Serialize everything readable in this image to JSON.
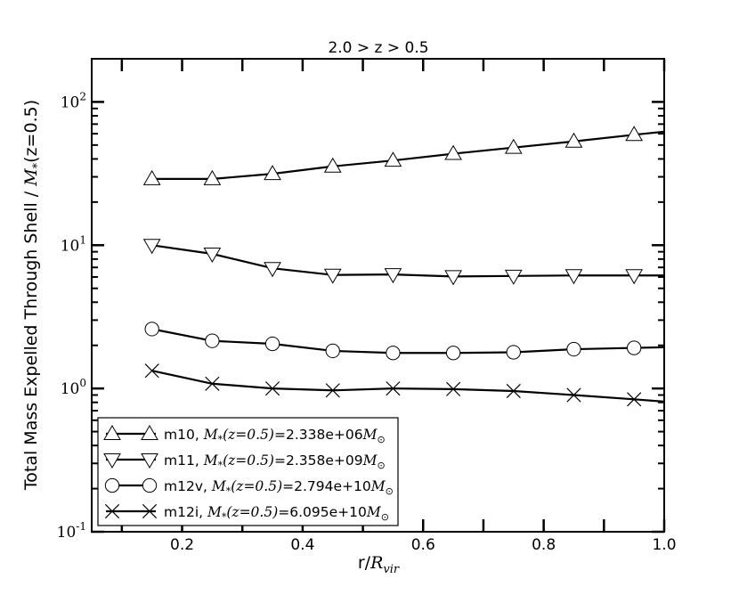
{
  "chart_data": {
    "type": "line",
    "title": "2.0 > z > 0.5",
    "xlabel": "r/R_vir",
    "ylabel": "Total Mass Expelled Through Shell / M_*(z=0.5)",
    "xscale": "linear",
    "yscale": "log",
    "xlim": [
      0.05,
      1.0
    ],
    "ylim": [
      0.1,
      200
    ],
    "xticks": [
      {
        "v": 0.2,
        "label": "0.2"
      },
      {
        "v": 0.4,
        "label": "0.4"
      },
      {
        "v": 0.6,
        "label": "0.6"
      },
      {
        "v": 0.8,
        "label": "0.8"
      },
      {
        "v": 1.0,
        "label": "1.0"
      }
    ],
    "yticks": [
      {
        "v": 0.1,
        "base": "10",
        "exp": "-1"
      },
      {
        "v": 1,
        "base": "10",
        "exp": "0"
      },
      {
        "v": 10,
        "base": "10",
        "exp": "1"
      },
      {
        "v": 100,
        "base": "10",
        "exp": "2"
      }
    ],
    "grid": false,
    "legend_position": "lower-left",
    "x": [
      0.15,
      0.25,
      0.35,
      0.45,
      0.55,
      0.65,
      0.75,
      0.85,
      0.95
    ],
    "series": [
      {
        "name": "m10",
        "label_sim": "m10,",
        "label_value": "2.338e+06",
        "marker": "triangle-up",
        "values": [
          29,
          29,
          31.5,
          35.5,
          39,
          43.5,
          48,
          53,
          59
        ],
        "line_end": 62
      },
      {
        "name": "m11",
        "label_sim": "m11,",
        "label_value": "2.358e+09",
        "marker": "triangle-down",
        "values": [
          10,
          8.7,
          6.9,
          6.2,
          6.25,
          6.05,
          6.1,
          6.15,
          6.15
        ],
        "line_end": 6.15
      },
      {
        "name": "m12v",
        "label_sim": "m12v,",
        "label_value": "2.794e+10",
        "marker": "circle",
        "values": [
          2.6,
          2.15,
          2.05,
          1.83,
          1.77,
          1.77,
          1.79,
          1.88,
          1.92
        ],
        "line_end": 1.94
      },
      {
        "name": "m12i",
        "label_sim": "m12i,",
        "label_value": "6.095e+10",
        "marker": "x",
        "values": [
          1.33,
          1.08,
          1.0,
          0.97,
          1.0,
          0.99,
          0.96,
          0.9,
          0.84
        ],
        "line_end": 0.81
      }
    ]
  }
}
